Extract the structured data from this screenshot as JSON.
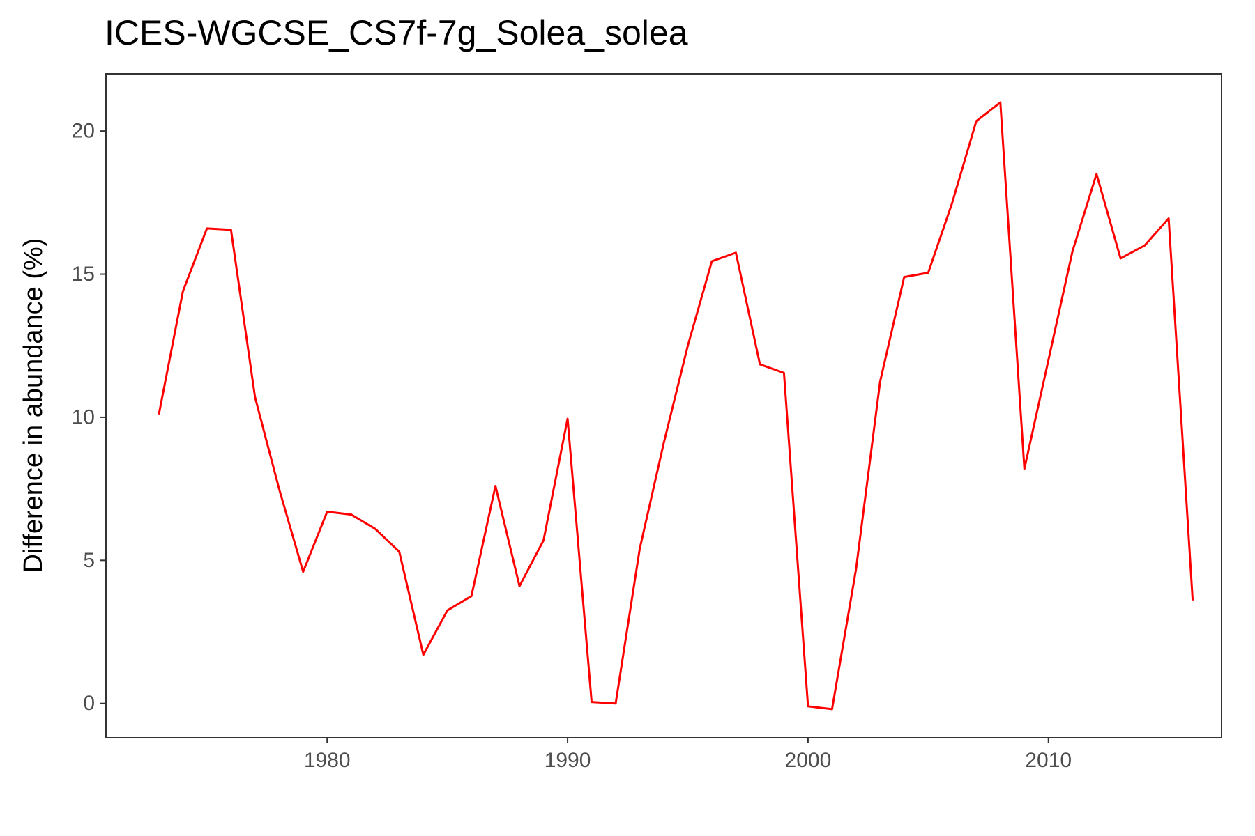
{
  "chart_data": {
    "type": "line",
    "title": "ICES-WGCSE_CS7f-7g_Solea_solea",
    "xlabel": "",
    "ylabel": "Difference in abundance (%)",
    "xlim": [
      1970.8,
      2017.2
    ],
    "ylim": [
      -1.2,
      22
    ],
    "x_ticks": [
      1980,
      1990,
      2000,
      2010
    ],
    "y_ticks": [
      0,
      5,
      10,
      15,
      20
    ],
    "grid": false,
    "legend": "none",
    "series": [
      {
        "color": "#ff0000",
        "x": [
          1973,
          1974,
          1975,
          1976,
          1977,
          1978,
          1979,
          1980,
          1981,
          1982,
          1983,
          1984,
          1985,
          1986,
          1987,
          1988,
          1989,
          1990,
          1991,
          1992,
          1993,
          1994,
          1995,
          1996,
          1997,
          1998,
          1999,
          2000,
          2001,
          2002,
          2003,
          2004,
          2005,
          2006,
          2007,
          2008,
          2009,
          2010,
          2011,
          2012,
          2013,
          2014,
          2015,
          2016
        ],
        "values": [
          10.1,
          14.4,
          16.6,
          16.55,
          10.7,
          7.5,
          4.6,
          6.7,
          6.6,
          6.1,
          5.3,
          1.7,
          3.25,
          3.75,
          7.6,
          4.1,
          5.7,
          9.95,
          0.05,
          0.0,
          5.4,
          9.1,
          12.5,
          15.45,
          15.75,
          11.85,
          11.55,
          -0.1,
          -0.2,
          4.7,
          11.25,
          14.9,
          15.05,
          17.5,
          20.35,
          21.0,
          8.2,
          12.0,
          15.8,
          18.5,
          15.55,
          16.0,
          16.95,
          3.6
        ]
      }
    ]
  }
}
